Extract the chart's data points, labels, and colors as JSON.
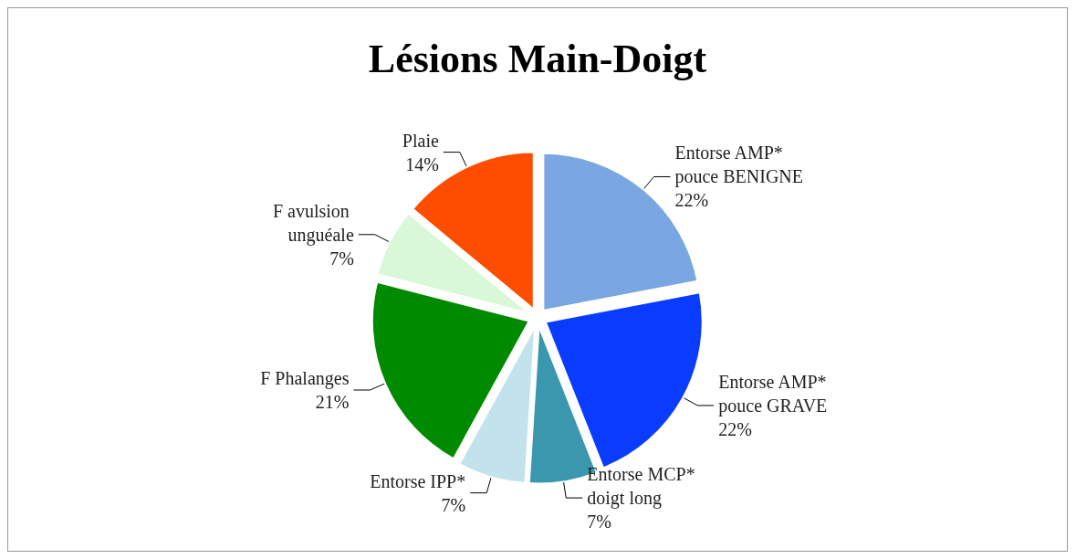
{
  "chart_data": {
    "type": "pie",
    "title": "Lésions Main-Doigt",
    "categories": [
      "Entorse AMP* pouce BENIGNE",
      "Entorse AMP* pouce GRAVE",
      "Entorse MCP* doigt long",
      "Entorse IPP*",
      "F Phalanges",
      "F avulsion unguéale",
      "Plaie"
    ],
    "values": [
      22,
      22,
      7,
      7,
      21,
      7,
      14
    ],
    "colors": [
      "#7aa6e2",
      "#0a3cff",
      "#3a97ad",
      "#c2e2ec",
      "#008a00",
      "#d8f8d8",
      "#ff4d00"
    ],
    "value_labels": [
      "22%",
      "22%",
      "7%",
      "7%",
      "21%",
      "7%",
      "14%"
    ],
    "legend": false
  }
}
